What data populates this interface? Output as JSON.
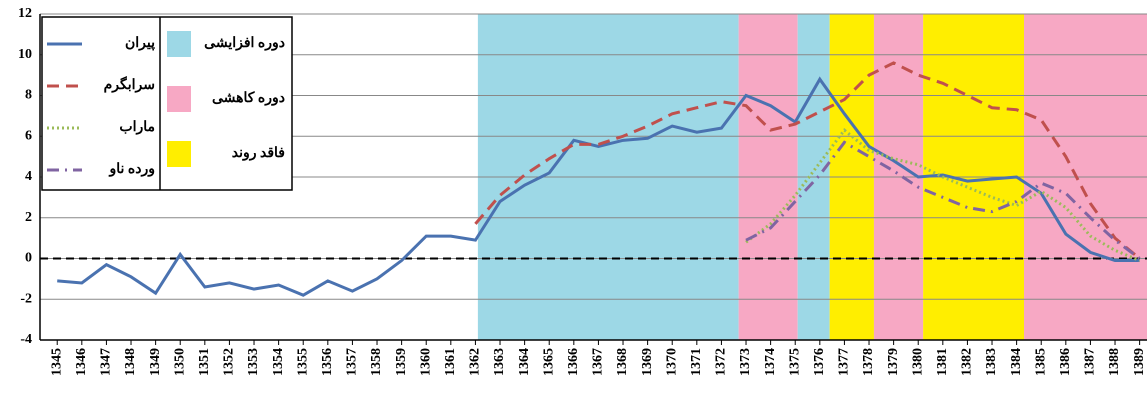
{
  "chart_data": {
    "type": "line",
    "x": [
      1345,
      1346,
      1347,
      1348,
      1349,
      1350,
      1351,
      1352,
      1353,
      1354,
      1355,
      1356,
      1357,
      1358,
      1359,
      1360,
      1361,
      1362,
      1363,
      1364,
      1365,
      1366,
      1367,
      1368,
      1369,
      1370,
      1371,
      1372,
      1373,
      1374,
      1375,
      1376,
      1377,
      1378,
      1379,
      1380,
      1381,
      1382,
      1383,
      1384,
      1385,
      1386,
      1387,
      1388,
      1389
    ],
    "xlim": [
      1344.3,
      1389.3
    ],
    "xticks": [
      1345,
      1346,
      1347,
      1348,
      1349,
      1350,
      1351,
      1352,
      1353,
      1354,
      1355,
      1356,
      1357,
      1358,
      1359,
      1360,
      1361,
      1362,
      1363,
      1364,
      1365,
      1366,
      1367,
      1368,
      1369,
      1370,
      1371,
      1372,
      1373,
      1374,
      1375,
      1376,
      1377,
      1378,
      1379,
      1380,
      1381,
      1382,
      1383,
      1384,
      1385,
      1386,
      1387,
      1388,
      1389
    ],
    "ylim": [
      -4,
      12
    ],
    "yticks": [
      -4,
      -2,
      0,
      2,
      4,
      6,
      8,
      10,
      12
    ],
    "grid": true,
    "series": [
      {
        "name": "پیران",
        "color": "#4a72b0",
        "dash": "solid",
        "values": [
          -1.1,
          -1.2,
          -0.3,
          -0.9,
          -1.7,
          0.2,
          -1.4,
          -1.2,
          -1.5,
          -1.3,
          -1.8,
          -1.1,
          -1.6,
          -1.0,
          -0.1,
          1.1,
          1.1,
          0.9,
          2.8,
          3.6,
          4.2,
          5.8,
          5.5,
          5.8,
          5.9,
          6.5,
          6.2,
          6.4,
          8.0,
          7.5,
          6.7,
          8.8,
          7.1,
          5.5,
          4.8,
          4.0,
          4.1,
          3.8,
          3.9,
          4.0,
          3.2,
          1.2,
          0.3,
          -0.1,
          -0.1
        ]
      },
      {
        "name": "سرابگرم",
        "color": "#c0504d",
        "dash": "dashed",
        "values": [
          null,
          null,
          null,
          null,
          null,
          null,
          null,
          null,
          null,
          null,
          null,
          null,
          null,
          null,
          null,
          null,
          null,
          1.7,
          3.1,
          4.1,
          4.9,
          5.6,
          5.6,
          6.0,
          6.5,
          7.1,
          7.4,
          7.7,
          7.5,
          6.3,
          6.6,
          7.2,
          7.8,
          9.0,
          9.6,
          9.0,
          8.6,
          8.0,
          7.4,
          7.3,
          6.8,
          5.0,
          2.7,
          1.0,
          0.0
        ]
      },
      {
        "name": "ماراب",
        "color": "#9bbb59",
        "dash": "dotted",
        "values": [
          null,
          null,
          null,
          null,
          null,
          null,
          null,
          null,
          null,
          null,
          null,
          null,
          null,
          null,
          null,
          null,
          null,
          null,
          null,
          null,
          null,
          null,
          null,
          null,
          null,
          null,
          null,
          null,
          0.8,
          1.7,
          3.1,
          4.7,
          6.3,
          5.3,
          4.9,
          4.6,
          4.0,
          3.5,
          3.0,
          2.6,
          3.3,
          2.5,
          1.1,
          0.4,
          -0.1
        ]
      },
      {
        "name": "ورده ناو",
        "color": "#8064a2",
        "dash": "dashdot",
        "values": [
          null,
          null,
          null,
          null,
          null,
          null,
          null,
          null,
          null,
          null,
          null,
          null,
          null,
          null,
          null,
          null,
          null,
          null,
          null,
          null,
          null,
          null,
          null,
          null,
          null,
          null,
          null,
          null,
          0.9,
          1.5,
          2.8,
          4.1,
          5.7,
          5.0,
          4.3,
          3.5,
          3.0,
          2.5,
          2.3,
          2.8,
          3.7,
          3.2,
          2.0,
          0.9,
          0.0
        ]
      }
    ],
    "phases": [
      {
        "name": "دوره افزایشی",
        "color": "#9dd8e6"
      },
      {
        "name": "دوره کاهشی",
        "color": "#f7a8c4"
      },
      {
        "name": "فاقد روند",
        "color": "#ffee00"
      }
    ],
    "periods": [
      {
        "phase": 0,
        "from": 1362.1,
        "to": 1372.7
      },
      {
        "phase": 1,
        "from": 1372.7,
        "to": 1375.1
      },
      {
        "phase": 0,
        "from": 1375.1,
        "to": 1376.4
      },
      {
        "phase": 2,
        "from": 1376.4,
        "to": 1378.2
      },
      {
        "phase": 1,
        "from": 1378.2,
        "to": 1380.2
      },
      {
        "phase": 2,
        "from": 1380.2,
        "to": 1384.3
      },
      {
        "phase": 1,
        "from": 1384.3,
        "to": 1389.3
      }
    ],
    "zero_line": 0
  }
}
